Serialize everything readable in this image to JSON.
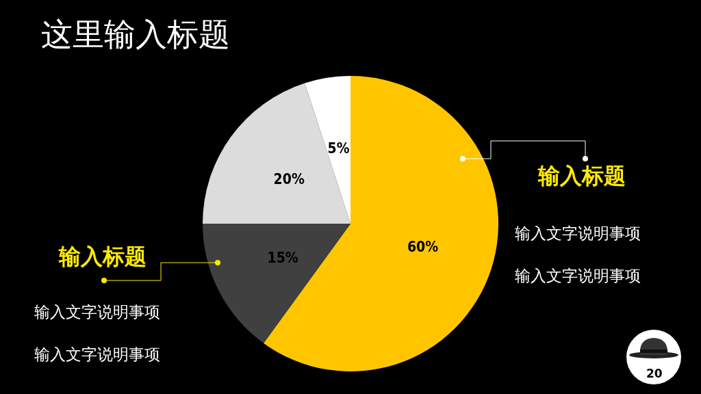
{
  "chart_data": {
    "type": "pie",
    "title": "这里输入标题",
    "categories": [
      null,
      null,
      null,
      null
    ],
    "values": [
      60,
      15,
      20,
      5
    ],
    "colors": [
      "#ffc600",
      "#404040",
      "#dcdcdc",
      "#ffffff"
    ],
    "value_labels": [
      "60%",
      "15%",
      "20%",
      "5%"
    ],
    "annotations": [
      "输入标题",
      "输入文字说明事项",
      "输入文字说明事项",
      "输入标题",
      "输入文字说明事项",
      "输入文字说明事项",
      "20"
    ]
  }
}
